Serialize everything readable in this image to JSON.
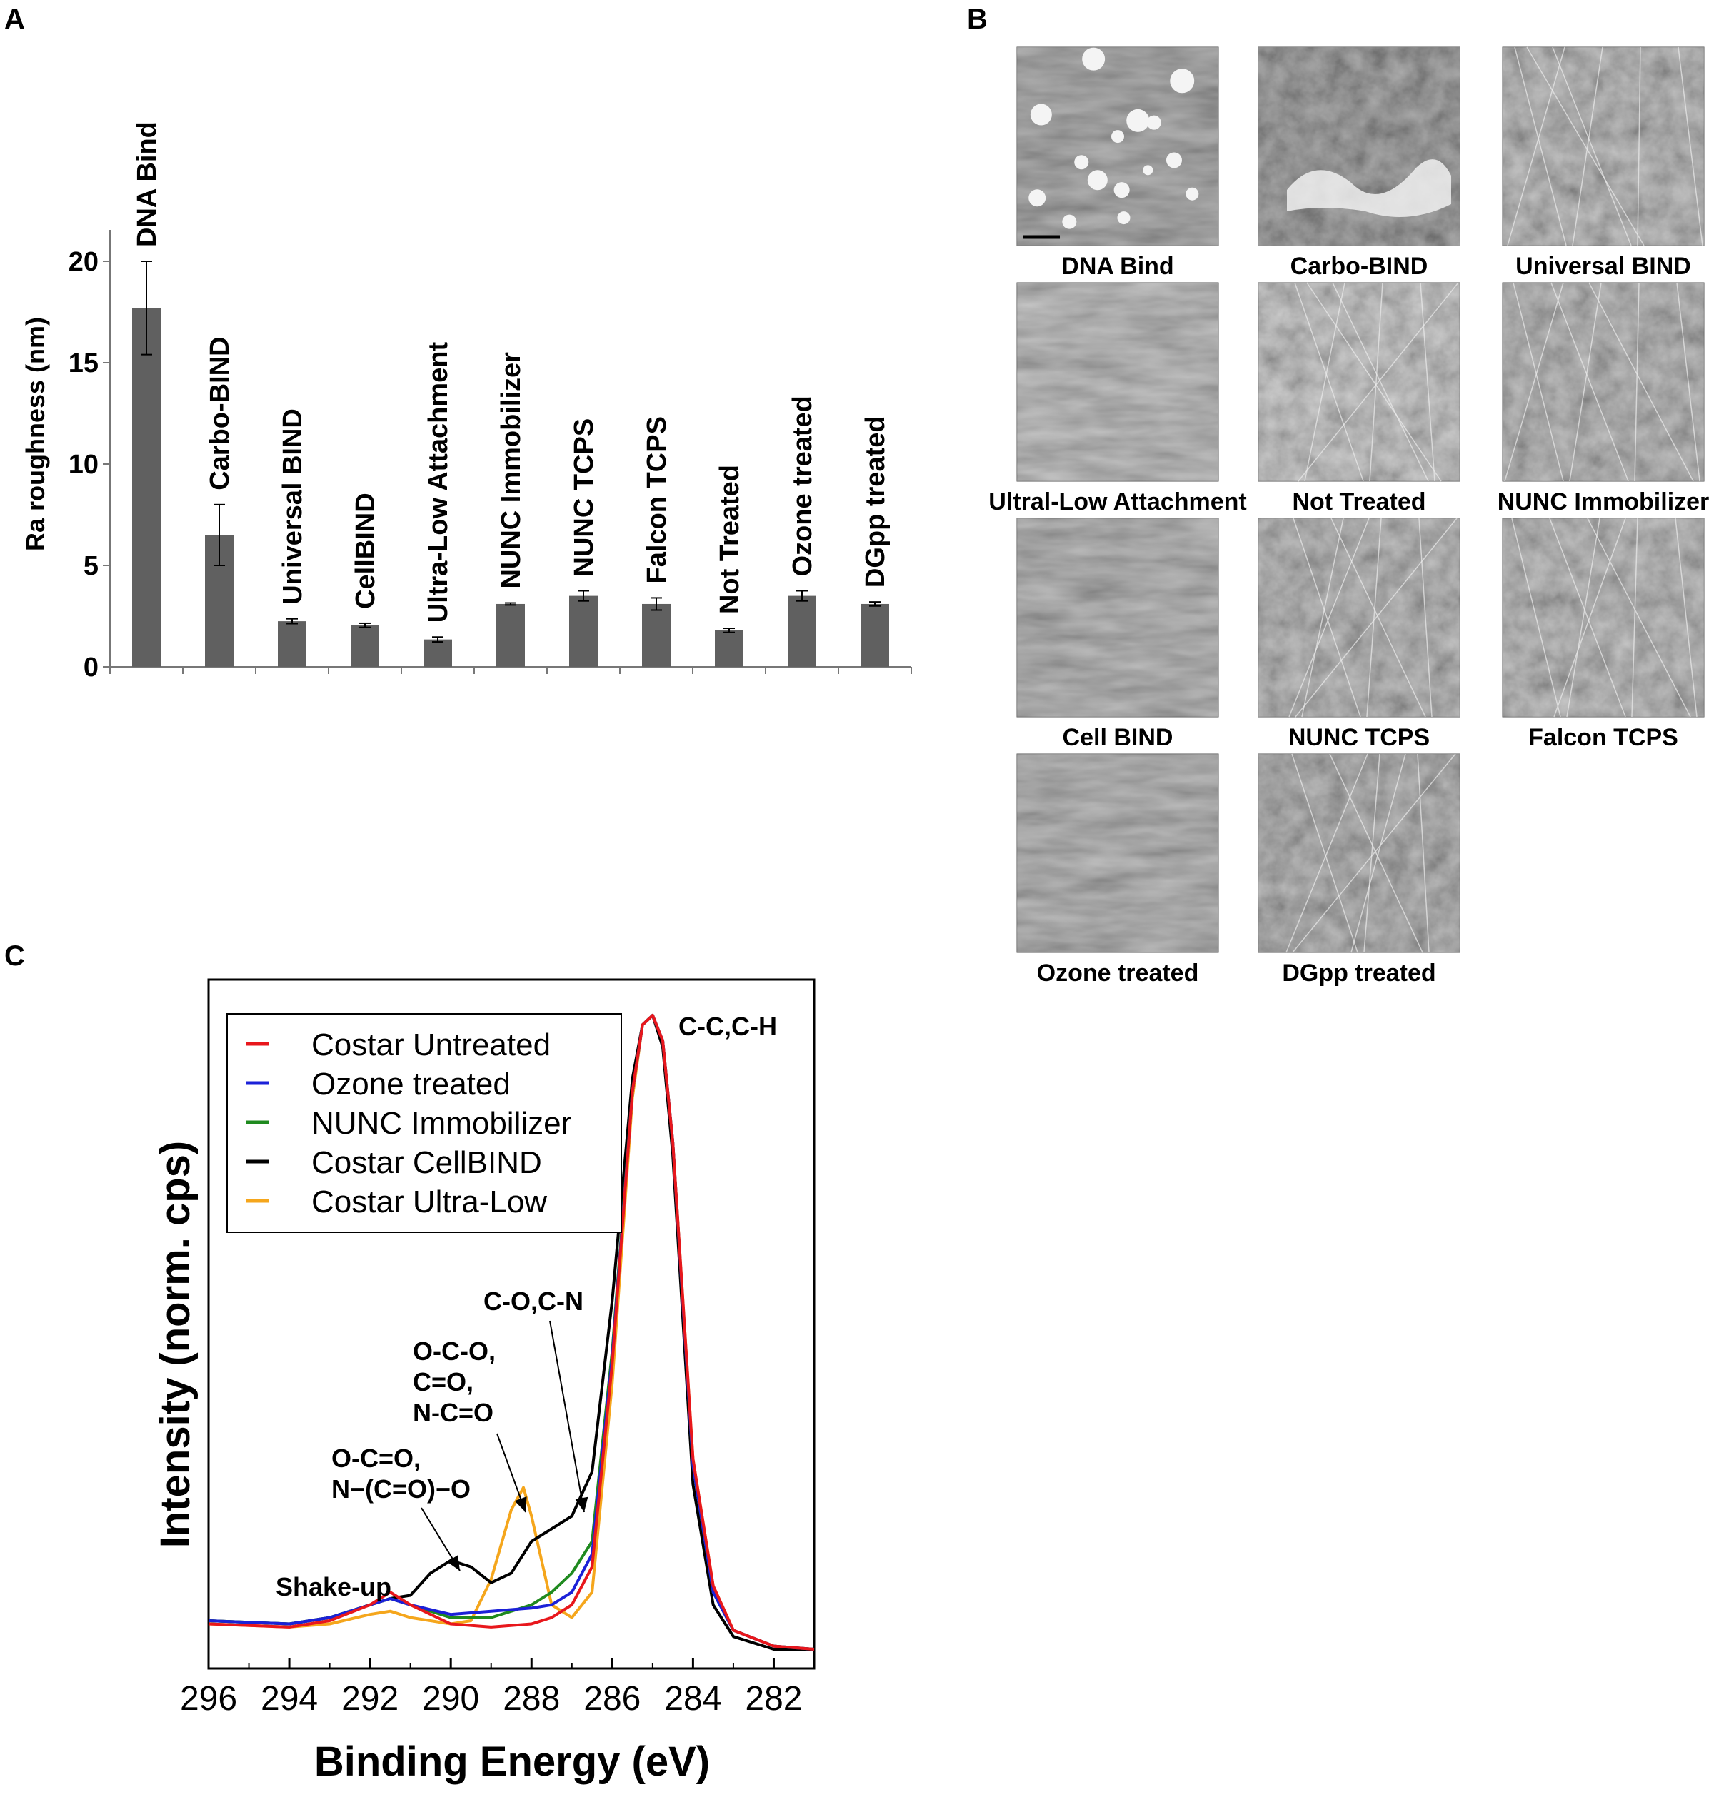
{
  "panels": {
    "a": "A",
    "b": "B",
    "c": "C"
  },
  "chart_data": [
    {
      "type": "bar",
      "panel": "A",
      "ylabel": "Ra roughness (nm)",
      "ylim": [
        0,
        20
      ],
      "yticks": [
        "0",
        "5",
        "10",
        "15",
        "20"
      ],
      "categories": [
        "DNA Bind",
        "Carbo-BIND",
        "Universal BIND",
        "CellBIND",
        "Ultra-Low Attachment",
        "NUNC Immobilizer",
        "NUNC TCPS",
        "Falcon TCPS",
        "Not Treated",
        "Ozone treated",
        "DGpp treated"
      ],
      "values": [
        17.7,
        6.5,
        2.25,
        2.05,
        1.35,
        3.1,
        3.5,
        3.1,
        1.8,
        3.5,
        3.1
      ],
      "errors": [
        2.3,
        1.5,
        0.12,
        0.1,
        0.12,
        0.05,
        0.25,
        0.3,
        0.1,
        0.25,
        0.1
      ],
      "bar_color": "#606060"
    },
    {
      "type": "line",
      "panel": "C",
      "xlabel": "Binding Energy (eV)",
      "ylabel": "Intensity (norm. cps)",
      "xlim": [
        296,
        281
      ],
      "xticks": [
        "296",
        "294",
        "292",
        "290",
        "288",
        "286",
        "284",
        "282"
      ],
      "legend_position": "top-left",
      "series": [
        {
          "name": "Costar Untreated",
          "color": "#e8171c",
          "x": [
            296,
            294,
            293,
            292,
            291.5,
            291,
            290,
            289,
            288,
            287.5,
            287,
            286.5,
            286,
            285.5,
            285.25,
            285,
            284.75,
            284.5,
            284,
            283.5,
            283,
            282,
            281
          ],
          "y": [
            0.04,
            0.035,
            0.045,
            0.07,
            0.09,
            0.07,
            0.04,
            0.035,
            0.04,
            0.05,
            0.07,
            0.13,
            0.45,
            0.88,
            0.985,
            1.0,
            0.96,
            0.8,
            0.3,
            0.1,
            0.03,
            0.005,
            0.0
          ]
        },
        {
          "name": "Ozone treated",
          "color": "#1b21d8",
          "x": [
            296,
            294,
            293,
            292,
            291.5,
            291,
            290,
            289,
            288,
            287.5,
            287,
            286.5,
            286,
            285.5,
            285.25,
            285,
            284.75,
            284.5,
            284,
            283.5,
            283,
            282,
            281
          ],
          "y": [
            0.045,
            0.04,
            0.05,
            0.07,
            0.08,
            0.07,
            0.055,
            0.06,
            0.065,
            0.07,
            0.09,
            0.15,
            0.46,
            0.88,
            0.985,
            1.0,
            0.96,
            0.8,
            0.29,
            0.09,
            0.03,
            0.005,
            0.0
          ]
        },
        {
          "name": "NUNC Immobilizer",
          "color": "#1f8a1f",
          "x": [
            296,
            294,
            293,
            292,
            291.5,
            291,
            290,
            289,
            288,
            287.5,
            287,
            286.5,
            286,
            285.5,
            285.25,
            285,
            284.75,
            284.5,
            284,
            283.5,
            283,
            282,
            281
          ],
          "y": [
            0.045,
            0.04,
            0.05,
            0.07,
            0.08,
            0.07,
            0.05,
            0.05,
            0.07,
            0.09,
            0.12,
            0.17,
            0.47,
            0.88,
            0.985,
            1.0,
            0.96,
            0.8,
            0.29,
            0.09,
            0.03,
            0.005,
            0.0
          ]
        },
        {
          "name": "Costar CellBIND",
          "color": "#000000",
          "x": [
            296,
            294,
            293,
            292,
            291.5,
            291,
            290.5,
            290,
            289.5,
            289,
            288.5,
            288,
            287.5,
            287,
            286.5,
            286,
            285.5,
            285.25,
            285,
            284.75,
            284.5,
            284,
            283.5,
            283,
            282,
            281
          ],
          "y": [
            0.045,
            0.04,
            0.05,
            0.07,
            0.08,
            0.085,
            0.12,
            0.14,
            0.13,
            0.105,
            0.12,
            0.17,
            0.19,
            0.21,
            0.28,
            0.55,
            0.9,
            0.985,
            1.0,
            0.95,
            0.78,
            0.26,
            0.07,
            0.02,
            0.0,
            0.0
          ]
        },
        {
          "name": "Costar Ultra-Low",
          "color": "#f5a61c",
          "x": [
            296,
            294,
            293,
            292,
            291.5,
            291,
            290,
            289.5,
            289,
            288.5,
            288.2,
            288,
            287.5,
            287,
            286.5,
            286,
            285.5,
            285.25,
            285,
            284.75,
            284.5,
            284,
            283.5,
            283,
            282,
            281
          ],
          "y": [
            0.04,
            0.035,
            0.04,
            0.055,
            0.06,
            0.05,
            0.04,
            0.045,
            0.11,
            0.22,
            0.255,
            0.21,
            0.07,
            0.05,
            0.09,
            0.42,
            0.87,
            0.985,
            1.0,
            0.96,
            0.8,
            0.3,
            0.1,
            0.03,
            0.005,
            0.0
          ]
        }
      ],
      "annotations": [
        "C-C,C-H",
        "C-O,C-N",
        "O-C-O,",
        "C=O,",
        "N-C=O",
        "O-C=O,",
        "N−(C=O)−O",
        "Shake-up"
      ]
    }
  ],
  "micrographs": [
    {
      "label": "DNA Bind"
    },
    {
      "label": "Carbo-BIND"
    },
    {
      "label": "Universal BIND"
    },
    {
      "label": "Ultral-Low Attachment"
    },
    {
      "label": "Not Treated"
    },
    {
      "label": "NUNC Immobilizer"
    },
    {
      "label": "Cell BIND"
    },
    {
      "label": "NUNC TCPS"
    },
    {
      "label": "Falcon TCPS"
    },
    {
      "label": "Ozone treated"
    },
    {
      "label": "DGpp treated"
    }
  ]
}
